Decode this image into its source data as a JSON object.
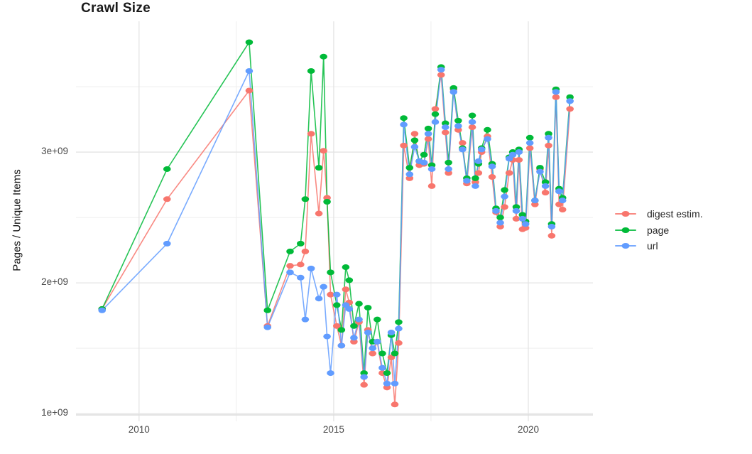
{
  "title": "Crawl Size",
  "ylabel": "Pages / Unique Items",
  "legend": {
    "position": "right",
    "items": [
      {
        "label": "digest estim.",
        "color": "#F8766D"
      },
      {
        "label": "page",
        "color": "#00BA38"
      },
      {
        "label": "url",
        "color": "#619CFF"
      }
    ]
  },
  "chart_data": {
    "type": "line",
    "title": "Crawl Size",
    "xlabel": "",
    "ylabel": "Pages / Unique Items",
    "grid": true,
    "legend_position": "right",
    "x_unit": "year",
    "y_unit": "pages / unique items (count)",
    "x_domain": [
      2008.38,
      2021.66
    ],
    "y_domain_billion": [
      0.99,
      4.0
    ],
    "x_major_ticks": [
      {
        "value": 2010,
        "label": "2010"
      },
      {
        "value": 2015,
        "label": "2015"
      },
      {
        "value": 2020,
        "label": "2020"
      }
    ],
    "x_minor_ticks": [
      2012.5,
      2017.5
    ],
    "y_major_ticks": [
      {
        "value": 1.0,
        "label": "1e+09"
      },
      {
        "value": 2.0,
        "label": "2e+09"
      },
      {
        "value": 3.0,
        "label": "3e+09"
      }
    ],
    "y_minor_ticks": [
      1.5,
      2.5,
      3.5
    ],
    "values_scale": "1e9",
    "x": [
      2009.05,
      2010.72,
      2012.83,
      2013.3,
      2013.88,
      2014.15,
      2014.27,
      2014.42,
      2014.62,
      2014.74,
      2014.83,
      2014.92,
      2015.08,
      2015.2,
      2015.31,
      2015.4,
      2015.52,
      2015.65,
      2015.78,
      2015.88,
      2016.0,
      2016.12,
      2016.25,
      2016.37,
      2016.48,
      2016.57,
      2016.67,
      2016.8,
      2016.95,
      2017.08,
      2017.2,
      2017.32,
      2017.43,
      2017.52,
      2017.61,
      2017.76,
      2017.87,
      2017.95,
      2018.08,
      2018.2,
      2018.31,
      2018.42,
      2018.56,
      2018.64,
      2018.72,
      2018.8,
      2018.95,
      2019.07,
      2019.17,
      2019.28,
      2019.39,
      2019.51,
      2019.6,
      2019.69,
      2019.76,
      2019.85,
      2019.93,
      2020.04,
      2020.17,
      2020.3,
      2020.44,
      2020.52,
      2020.6,
      2020.71,
      2020.79,
      2020.88,
      2021.07
    ],
    "series": [
      {
        "name": "digest estim.",
        "color": "#F8766D",
        "values_billion": [
          1.8,
          2.64,
          3.47,
          1.67,
          2.13,
          2.14,
          2.24,
          3.14,
          2.53,
          3.01,
          2.65,
          1.91,
          1.67,
          1.52,
          1.95,
          1.85,
          1.55,
          1.7,
          1.22,
          1.64,
          1.46,
          1.55,
          1.31,
          1.2,
          1.43,
          1.07,
          1.54,
          3.05,
          2.8,
          3.14,
          2.9,
          2.91,
          3.1,
          2.74,
          3.33,
          3.59,
          3.15,
          2.84,
          3.48,
          3.17,
          3.07,
          2.76,
          3.19,
          2.77,
          2.84,
          3.0,
          3.12,
          2.81,
          2.54,
          2.43,
          2.58,
          2.84,
          2.94,
          2.49,
          2.94,
          2.41,
          2.42,
          3.03,
          2.6,
          2.87,
          2.69,
          3.05,
          2.36,
          3.42,
          2.6,
          2.56,
          3.33
        ]
      },
      {
        "name": "page",
        "color": "#00BA38",
        "values_billion": [
          1.8,
          2.87,
          3.84,
          1.79,
          2.24,
          2.3,
          2.64,
          3.62,
          2.88,
          3.73,
          2.62,
          2.08,
          1.83,
          1.64,
          2.12,
          2.02,
          1.67,
          1.84,
          1.31,
          1.81,
          1.55,
          1.72,
          1.46,
          1.31,
          1.6,
          1.46,
          1.7,
          3.26,
          2.88,
          3.09,
          2.93,
          2.98,
          3.18,
          2.9,
          3.29,
          3.65,
          3.22,
          2.92,
          3.49,
          3.24,
          3.03,
          2.8,
          3.28,
          2.8,
          2.91,
          3.03,
          3.17,
          2.91,
          2.57,
          2.5,
          2.71,
          2.96,
          3.0,
          2.58,
          3.02,
          2.52,
          2.47,
          3.11,
          2.63,
          2.88,
          2.77,
          3.14,
          2.45,
          3.48,
          2.72,
          2.65,
          3.42
        ]
      },
      {
        "name": "url",
        "color": "#619CFF",
        "values_billion": [
          1.79,
          2.3,
          3.62,
          1.66,
          2.08,
          2.04,
          1.72,
          2.11,
          1.88,
          1.97,
          1.59,
          1.31,
          1.91,
          1.52,
          1.83,
          1.8,
          1.58,
          1.72,
          1.28,
          1.62,
          1.5,
          1.55,
          1.35,
          1.23,
          1.62,
          1.23,
          1.65,
          3.21,
          2.83,
          3.04,
          2.93,
          2.92,
          3.14,
          2.87,
          3.23,
          3.63,
          3.19,
          2.87,
          3.46,
          3.2,
          3.02,
          2.78,
          3.23,
          2.74,
          2.93,
          3.02,
          3.1,
          2.89,
          2.55,
          2.46,
          2.66,
          2.95,
          2.98,
          2.55,
          3.0,
          2.49,
          2.45,
          3.07,
          2.63,
          2.85,
          2.74,
          3.11,
          2.43,
          3.46,
          2.7,
          2.63,
          3.39
        ]
      }
    ]
  }
}
